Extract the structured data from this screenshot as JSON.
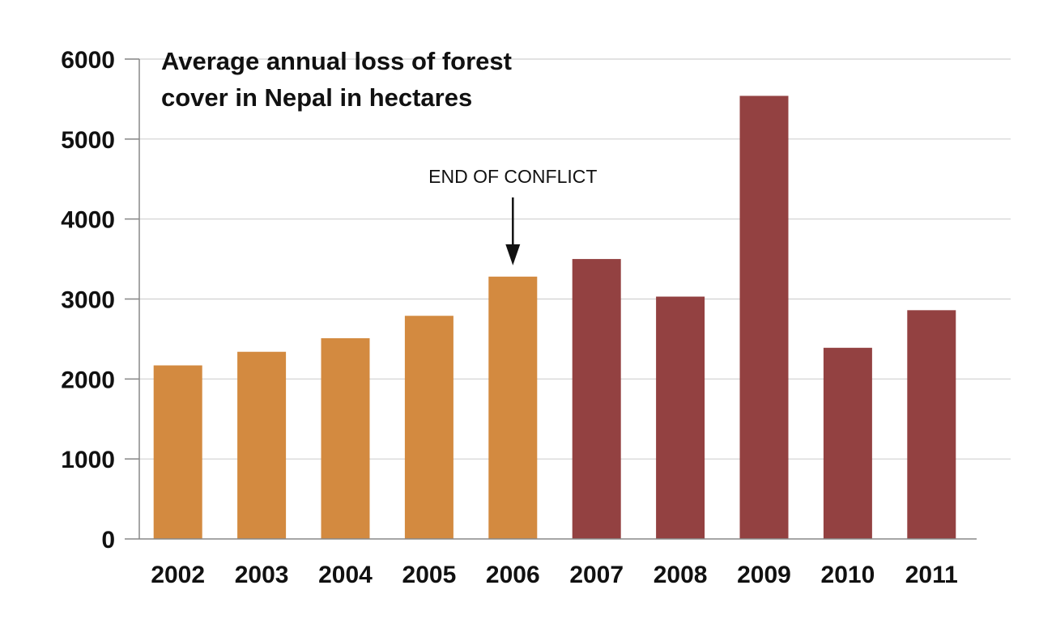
{
  "chart_data": {
    "type": "bar",
    "title_lines": [
      "Average annual loss of forest",
      "cover in Nepal in hectares"
    ],
    "xlabel": "",
    "ylabel": "",
    "categories": [
      "2002",
      "2003",
      "2004",
      "2005",
      "2006",
      "2007",
      "2008",
      "2009",
      "2010",
      "2011"
    ],
    "values": [
      2170,
      2340,
      2510,
      2790,
      3280,
      3500,
      3030,
      5540,
      2390,
      2860
    ],
    "ylim": [
      0,
      6000
    ],
    "yticks": [
      0,
      1000,
      2000,
      3000,
      4000,
      5000,
      6000
    ],
    "grid": true,
    "colors": {
      "before_conflict_end": "#D38A40",
      "after_conflict_end": "#934141",
      "grid": "#d0d0d0",
      "axis": "#888888"
    },
    "bar_groups": [
      "before",
      "before",
      "before",
      "before",
      "before",
      "after",
      "after",
      "after",
      "after",
      "after"
    ],
    "annotation": {
      "text": "END OF CONFLICT",
      "category": "2006"
    }
  }
}
